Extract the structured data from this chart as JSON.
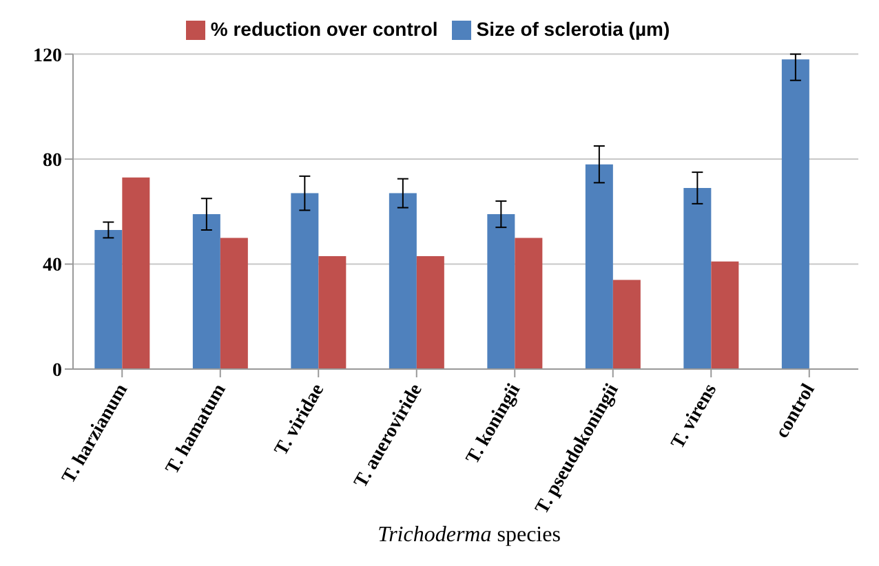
{
  "chart_data": {
    "type": "bar",
    "xlabel": "Trichoderma species",
    "categories": [
      "T. harzianum",
      "T. hamatum",
      "T. viridae",
      "T. aueroviride",
      "T. koningii",
      "T. pseudokoningii",
      "T. virens",
      "control"
    ],
    "series": [
      {
        "name": "Size of sclerotia (µm)",
        "color": "#4f81bd",
        "values": [
          53,
          59,
          67,
          67,
          59,
          78,
          69,
          118
        ],
        "errors": [
          3,
          6,
          6.5,
          5.5,
          5,
          7,
          6,
          [
            110,
            120
          ]
        ]
      },
      {
        "name": "% reduction over control",
        "color": "#c0504d",
        "values": [
          73,
          50,
          43,
          43,
          50,
          34,
          41,
          null
        ]
      }
    ],
    "ylim": [
      0,
      120
    ],
    "yticks": [
      0,
      40,
      80,
      120
    ],
    "grid": "y",
    "legend": "top"
  }
}
